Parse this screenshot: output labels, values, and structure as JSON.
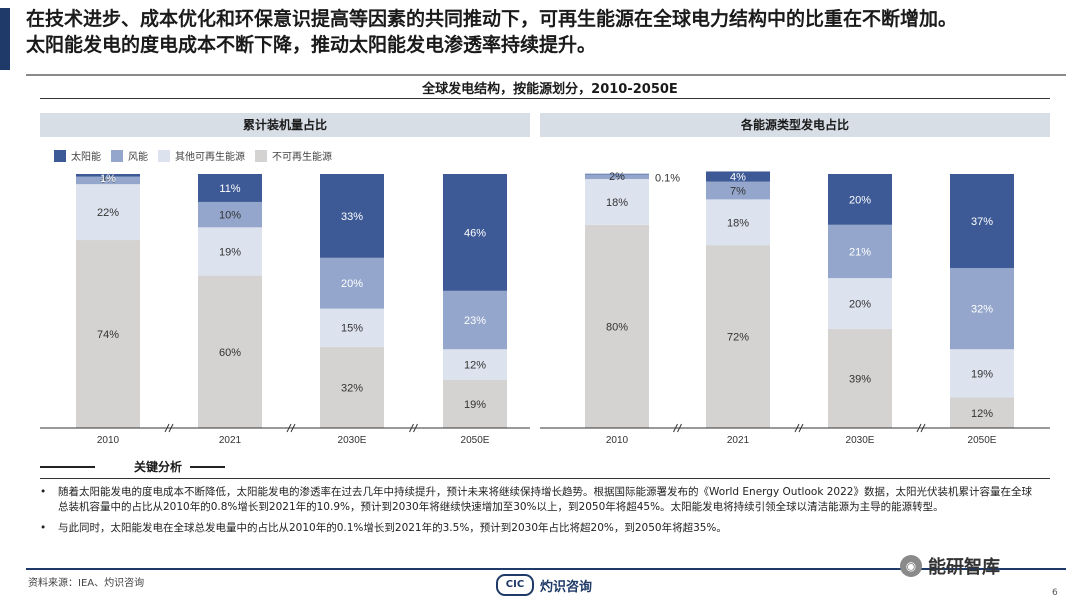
{
  "headline": {
    "line1": "在技术进步、成本优化和环保意识提高等因素的共同推动下，可再生能源在全球电力结构中的比重在不断增加。",
    "line2": "太阳能发电的度电成本不断下降，推动太阳能发电渗透率持续提升。"
  },
  "chart_title": "全球发电结构，按能源划分，2010-2050E",
  "panels": {
    "left_title": "累计装机量占比",
    "right_title": "各能源类型发电占比"
  },
  "colors": {
    "solar": "#3d5a96",
    "wind": "#94a6cc",
    "other": "#dde3ee",
    "nonrenew": "#d4d3d2",
    "accent": "#1f3a68"
  },
  "chart_data": [
    {
      "type": "bar",
      "stacked": true,
      "title": "累计装机量占比",
      "categories": [
        "2010",
        "2021",
        "2030E",
        "2050E"
      ],
      "series": [
        {
          "name": "不可再生能源",
          "values": [
            74,
            60,
            32,
            19
          ],
          "labels": [
            "74%",
            "60%",
            "32%",
            "19%"
          ]
        },
        {
          "name": "其他可再生能源",
          "values": [
            22,
            19,
            15,
            12
          ],
          "labels": [
            "22%",
            "19%",
            "15%",
            "12%"
          ]
        },
        {
          "name": "风能",
          "values": [
            3,
            10,
            20,
            23
          ],
          "labels": [
            "3%",
            "10%",
            "20%",
            "23%"
          ]
        },
        {
          "name": "太阳能",
          "values": [
            1,
            11,
            33,
            46
          ],
          "labels": [
            "1%",
            "11%",
            "33%",
            "46%"
          ]
        }
      ],
      "ylim": [
        0,
        100
      ],
      "axis_breaks": true
    },
    {
      "type": "bar",
      "stacked": true,
      "title": "各能源类型发电占比",
      "categories": [
        "2010",
        "2021",
        "2030E",
        "2050E"
      ],
      "series": [
        {
          "name": "不可再生能源",
          "values": [
            80,
            72,
            39,
            12
          ],
          "labels": [
            "80%",
            "72%",
            "39%",
            "12%"
          ]
        },
        {
          "name": "其他可再生能源",
          "values": [
            18,
            18,
            20,
            19
          ],
          "labels": [
            "18%",
            "18%",
            "20%",
            "19%"
          ]
        },
        {
          "name": "风能",
          "values": [
            2,
            7,
            21,
            32
          ],
          "labels": [
            "2%",
            "7%",
            "21%",
            "32%"
          ]
        },
        {
          "name": "太阳能",
          "values": [
            0.1,
            4,
            20,
            37
          ],
          "labels": [
            "0.1%",
            "4%",
            "20%",
            "37%"
          ]
        }
      ],
      "ylim": [
        0,
        100
      ],
      "axis_breaks": true
    }
  ],
  "legend": [
    {
      "label": "太阳能",
      "color": "#3d5a96"
    },
    {
      "label": "风能",
      "color": "#94a6cc"
    },
    {
      "label": "其他可再生能源",
      "color": "#dde3ee"
    },
    {
      "label": "不可再生能源",
      "color": "#d4d3d2"
    }
  ],
  "analysis": {
    "title": "关键分析",
    "bullet1": "随着太阳能发电的度电成本不断降低，太阳能发电的渗透率在过去几年中持续提升，预计未来将继续保持增长趋势。根据国际能源署发布的《World Energy Outlook 2022》数据，太阳光伏装机累计容量在全球总装机容量中的占比从2010年的0.8%增长到2021年的10.9%，预计到2030年将继续快速增加至30%以上，到2050年将超45%。太阳能发电将持续引领全球以清洁能源为主导的能源转型。",
    "bullet2": "与此同时，太阳能发电在全球总发电量中的占比从2010年的0.1%增长到2021年的3.5%，预计到2030年占比将超20%，到2050年将超35%。"
  },
  "footer": {
    "source": "资料来源：IEA、灼识咨询",
    "logo_mark": "CIC",
    "logo_name": "灼识咨询",
    "wechat_name": "能研智库",
    "page_number": "6"
  }
}
